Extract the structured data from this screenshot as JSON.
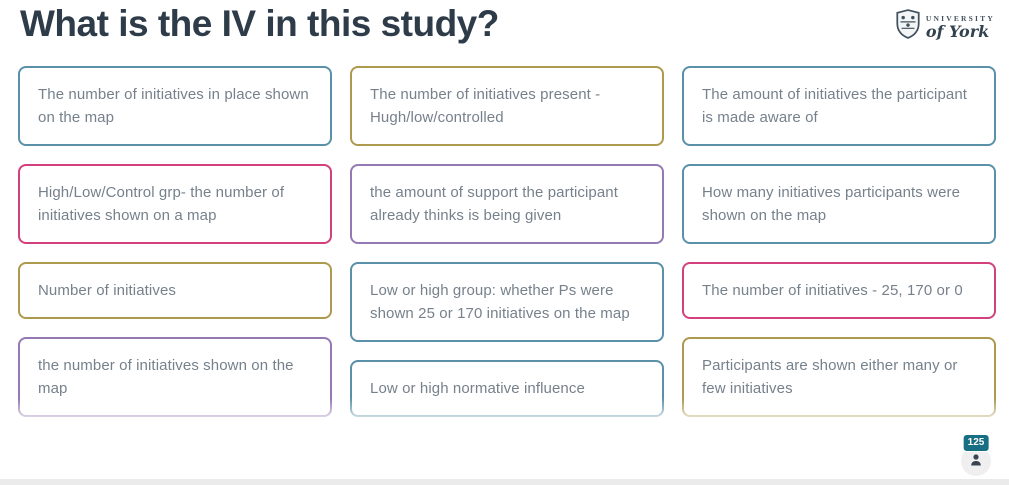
{
  "slide": {
    "title": "What is the IV in this study?",
    "logo": {
      "line1": "UNIVERSITY",
      "line2": "of York"
    },
    "colors": {
      "teal": "#5a91a8",
      "pink": "#d2417e",
      "gold": "#ad9a4e",
      "purple": "#9678b4",
      "badge": "#186f83",
      "title_text": "#2e3b48",
      "card_text": "#76818c"
    },
    "columns": [
      {
        "cards": [
          {
            "text": "The number of initiatives in place shown on the map",
            "color": "teal"
          },
          {
            "text": "High/Low/Control grp- the number of initiatives shown on a map",
            "color": "pink"
          },
          {
            "text": "Number of initiatives",
            "color": "gold"
          },
          {
            "text": "the number of initiatives shown on the map",
            "color": "purple"
          }
        ]
      },
      {
        "cards": [
          {
            "text": "The number of initiatives present - Hugh/low/controlled",
            "color": "gold"
          },
          {
            "text": "the amount of support the participant already thinks is being given",
            "color": "purple"
          },
          {
            "text": "Low or high group: whether Ps were shown 25 or 170 initiatives on the map",
            "color": "teal"
          },
          {
            "text": "Low or high normative influence",
            "color": "teal"
          }
        ]
      },
      {
        "cards": [
          {
            "text": "The amount of initiatives the participant is made aware of",
            "color": "teal"
          },
          {
            "text": "How many initiatives participants were shown on the map",
            "color": "teal"
          },
          {
            "text": "The number of initiatives - 25, 170 or 0",
            "color": "pink"
          },
          {
            "text": "Participants are shown either many or few initiatives",
            "color": "gold"
          }
        ]
      }
    ],
    "participants": {
      "count": "125"
    }
  }
}
